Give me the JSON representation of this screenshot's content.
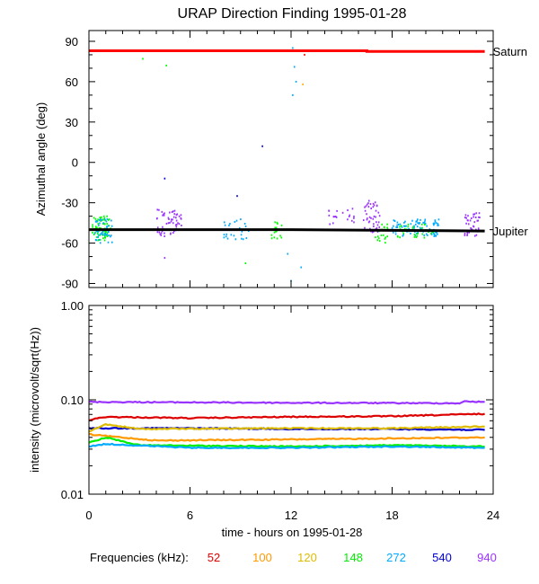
{
  "chart_data": [
    {
      "type": "scatter",
      "title": "URAP Direction Finding  1995-01-28",
      "ylabel": "Azimuthal angle (deg)",
      "xlim": [
        0,
        24
      ],
      "ylim": [
        -93,
        98
      ],
      "yticks": [
        90,
        60,
        30,
        0,
        -30,
        -60,
        -90
      ],
      "reference_lines": [
        {
          "label": "Saturn",
          "color": "#ff0000",
          "points": [
            [
              0,
              83
            ],
            [
              16.5,
              83
            ],
            [
              16.5,
              82.5
            ],
            [
              23.5,
              82.5
            ]
          ]
        },
        {
          "label": "Jupiter",
          "color": "#000000",
          "points": [
            [
              0,
              -50
            ],
            [
              12,
              -50
            ],
            [
              18,
              -50.5
            ],
            [
              23.5,
              -51
            ]
          ]
        }
      ],
      "clusters": [
        {
          "color": "#00ff00",
          "x": [
            0.2,
            1.3
          ],
          "y": [
            -58,
            -40
          ],
          "n": 70
        },
        {
          "color": "#00aaff",
          "x": [
            0.3,
            1.4
          ],
          "y": [
            -60,
            -42
          ],
          "n": 45
        },
        {
          "color": "#9933ff",
          "x": [
            4.0,
            5.5
          ],
          "y": [
            -55,
            -35
          ],
          "n": 55
        },
        {
          "color": "#00aaff",
          "x": [
            8.0,
            9.6
          ],
          "y": [
            -58,
            -42
          ],
          "n": 25
        },
        {
          "color": "#00ff00",
          "x": [
            10.8,
            11.5
          ],
          "y": [
            -57,
            -44
          ],
          "n": 15
        },
        {
          "color": "#9933ff",
          "x": [
            14.0,
            15.8
          ],
          "y": [
            -46,
            -34
          ],
          "n": 20
        },
        {
          "color": "#9933ff",
          "x": [
            16.3,
            17.3
          ],
          "y": [
            -52,
            -28
          ],
          "n": 45
        },
        {
          "color": "#00ff00",
          "x": [
            17.0,
            17.8
          ],
          "y": [
            -60,
            -46
          ],
          "n": 20
        },
        {
          "color": "#00aaff",
          "x": [
            18.0,
            20.8
          ],
          "y": [
            -55,
            -42
          ],
          "n": 90
        },
        {
          "color": "#00ff00",
          "x": [
            18.3,
            20.5
          ],
          "y": [
            -56,
            -45
          ],
          "n": 30
        },
        {
          "color": "#9933ff",
          "x": [
            22.3,
            23.2
          ],
          "y": [
            -55,
            -37
          ],
          "n": 40
        }
      ],
      "outliers": [
        {
          "color": "#00ff00",
          "x": 3.2,
          "y": 77
        },
        {
          "color": "#00ff00",
          "x": 4.6,
          "y": 72
        },
        {
          "color": "#00aaff",
          "x": 12.1,
          "y": 85
        },
        {
          "color": "#00aaff",
          "x": 12.2,
          "y": 71
        },
        {
          "color": "#00aaff",
          "x": 12.3,
          "y": 60
        },
        {
          "color": "#00aaff",
          "x": 12.1,
          "y": 50
        },
        {
          "color": "#ffaa00",
          "x": 12.7,
          "y": 58
        },
        {
          "color": "#0000dd",
          "x": 10.3,
          "y": 12
        },
        {
          "color": "#ff0000",
          "x": 12.8,
          "y": 80
        },
        {
          "color": "#0000dd",
          "x": 4.5,
          "y": -12
        },
        {
          "color": "#0000dd",
          "x": 8.8,
          "y": -25
        },
        {
          "color": "#00aaff",
          "x": 11.8,
          "y": -68
        },
        {
          "color": "#00aaff",
          "x": 12.0,
          "y": -88
        },
        {
          "color": "#00ff00",
          "x": 9.3,
          "y": -75
        },
        {
          "color": "#9933ff",
          "x": 4.5,
          "y": -71
        },
        {
          "color": "#00aaff",
          "x": 12.6,
          "y": -78
        }
      ]
    },
    {
      "type": "line",
      "xlabel": "time - hours on 1995-01-28",
      "ylabel": "intensity (microvolt/sqrt(Hz))",
      "yscale": "log",
      "xlim": [
        0,
        24
      ],
      "ylim": [
        0.01,
        1.0
      ],
      "xticks": [
        0,
        6,
        12,
        18,
        24
      ],
      "ytick_labels": [
        "1.00",
        "0.10",
        "0.01"
      ],
      "series": [
        {
          "name": "940",
          "color": "#9933ff",
          "points": [
            [
              0,
              0.095
            ],
            [
              12,
              0.093
            ],
            [
              22,
              0.092
            ],
            [
              22.3,
              0.096
            ],
            [
              23.5,
              0.095
            ]
          ]
        },
        {
          "name": "52",
          "color": "#dd0000",
          "points": [
            [
              0,
              0.061
            ],
            [
              1,
              0.066
            ],
            [
              6,
              0.064
            ],
            [
              12,
              0.066
            ],
            [
              18,
              0.067
            ],
            [
              23.5,
              0.071
            ]
          ]
        },
        {
          "name": "540",
          "color": "#0000cc",
          "points": [
            [
              0,
              0.05
            ],
            [
              6,
              0.05
            ],
            [
              12,
              0.049
            ],
            [
              18,
              0.049
            ],
            [
              23.5,
              0.048
            ]
          ]
        },
        {
          "name": "120",
          "color": "#ddbb00",
          "points": [
            [
              0,
              0.046
            ],
            [
              1,
              0.055
            ],
            [
              3,
              0.049
            ],
            [
              12,
              0.05
            ],
            [
              18,
              0.05
            ],
            [
              23.5,
              0.052
            ]
          ]
        },
        {
          "name": "100",
          "color": "#ff9900",
          "points": [
            [
              0,
              0.043
            ],
            [
              4,
              0.037
            ],
            [
              12,
              0.038
            ],
            [
              18,
              0.039
            ],
            [
              23.5,
              0.04
            ]
          ]
        },
        {
          "name": "148",
          "color": "#00ee00",
          "points": [
            [
              0,
              0.035
            ],
            [
              1,
              0.04
            ],
            [
              3,
              0.033
            ],
            [
              12,
              0.032
            ],
            [
              18,
              0.033
            ],
            [
              23.5,
              0.032
            ]
          ]
        },
        {
          "name": "272",
          "color": "#00aaff",
          "points": [
            [
              0,
              0.032
            ],
            [
              1,
              0.034
            ],
            [
              6,
              0.031
            ],
            [
              12,
              0.031
            ],
            [
              18,
              0.032
            ],
            [
              23.5,
              0.031
            ]
          ]
        }
      ]
    }
  ],
  "legend": {
    "title": "Frequencies (kHz):",
    "entries": [
      {
        "label": "52",
        "color": "#dd0000"
      },
      {
        "label": "100",
        "color": "#ff9900"
      },
      {
        "label": "120",
        "color": "#ddbb00"
      },
      {
        "label": "148",
        "color": "#00ee00"
      },
      {
        "label": "272",
        "color": "#00aaff"
      },
      {
        "label": "540",
        "color": "#0000cc"
      },
      {
        "label": "940",
        "color": "#9933ff"
      }
    ]
  }
}
